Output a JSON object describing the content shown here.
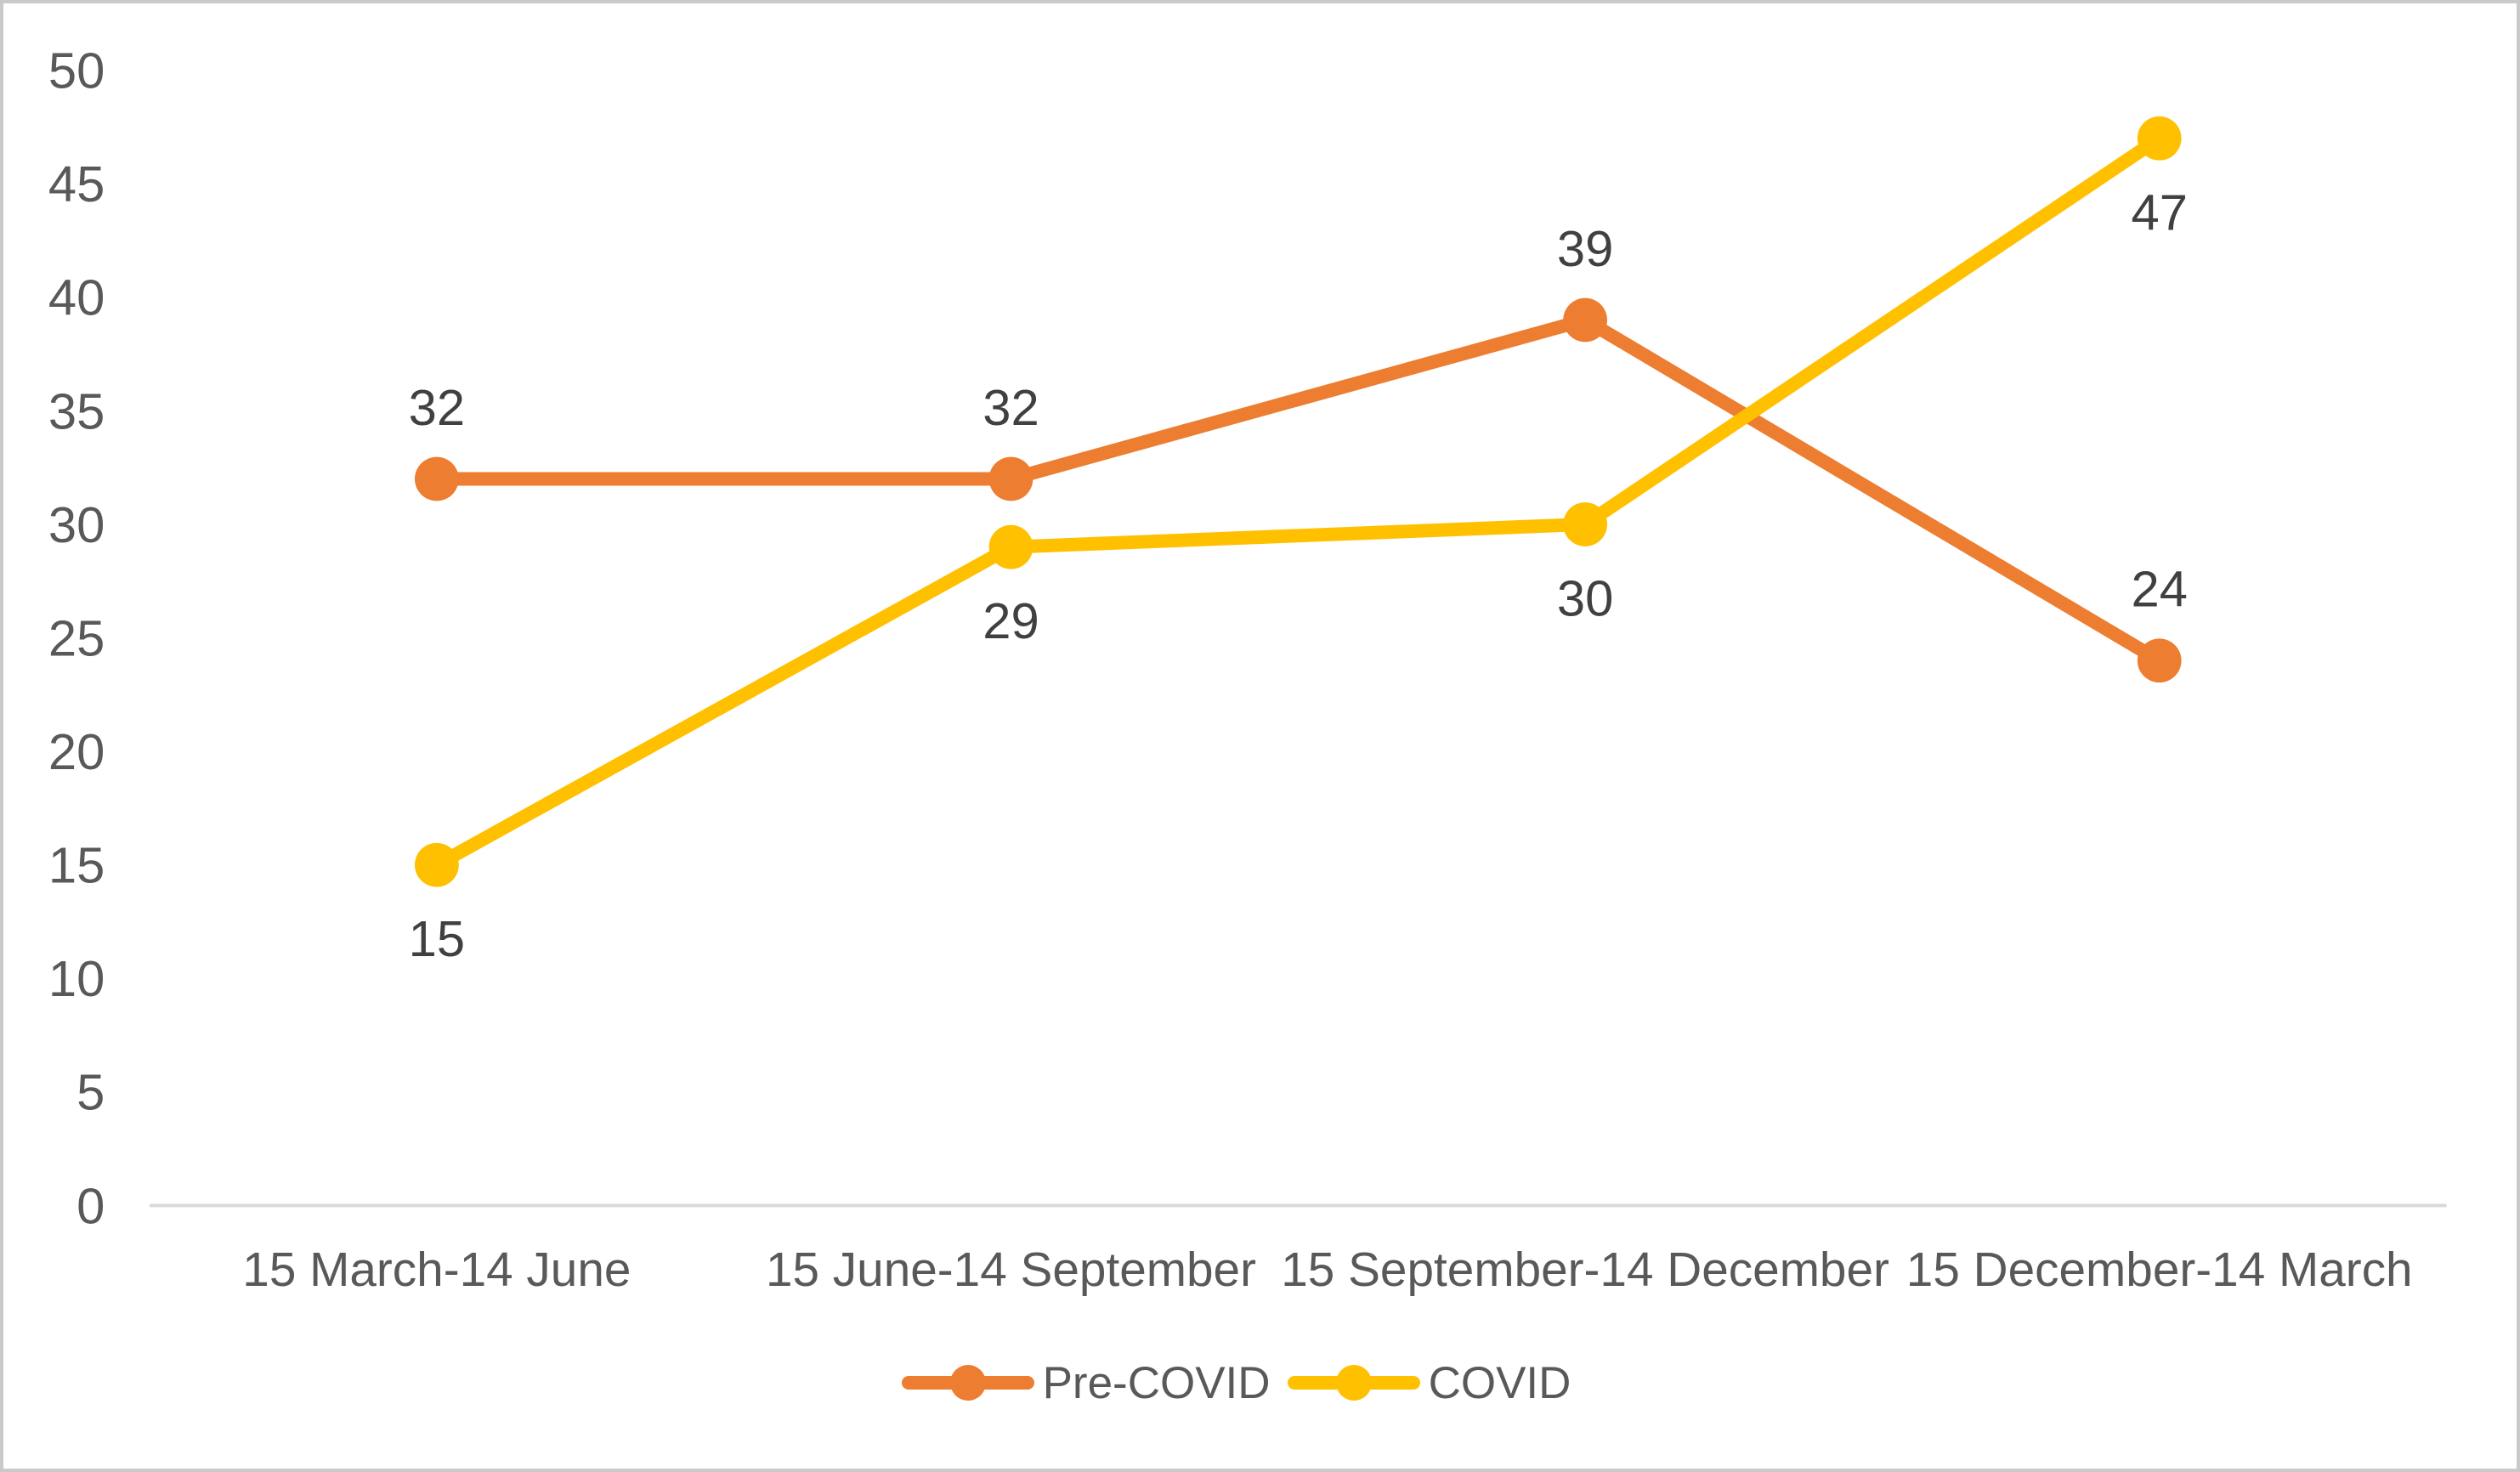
{
  "chart_data": {
    "type": "line",
    "title": "",
    "xlabel": "",
    "ylabel": "",
    "categories": [
      "15 March-14 June",
      "15 June-14 September",
      "15 September-14 December",
      "15 December-14 March"
    ],
    "series": [
      {
        "name": "Pre-COVID",
        "values": [
          32,
          32,
          39,
          24
        ],
        "color": "#ED7D31",
        "label_position": "above"
      },
      {
        "name": "COVID",
        "values": [
          15,
          29,
          30,
          47
        ],
        "color": "#FFC000",
        "label_position": "below"
      }
    ],
    "ylim": [
      0,
      50
    ],
    "yticks": [
      0,
      5,
      10,
      15,
      20,
      25,
      30,
      35,
      40,
      45,
      50
    ],
    "grid": false,
    "data_labels": true,
    "legend_position": "bottom-center",
    "axis_line_color": "#D9D9D9",
    "tick_label_color": "#595959",
    "data_label_color": "#404040",
    "background_color": "#FFFFFF",
    "frame_border_color": "#C9C9C9"
  }
}
